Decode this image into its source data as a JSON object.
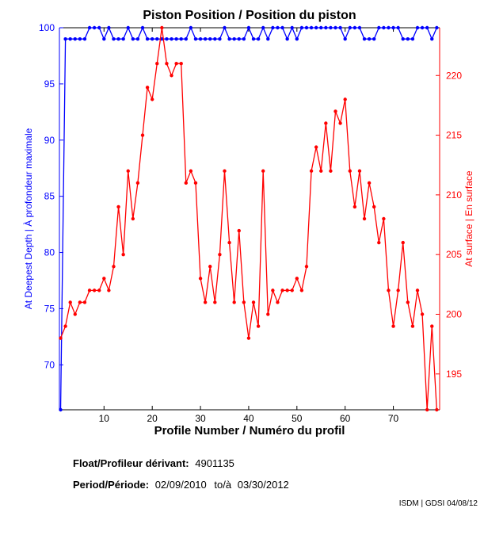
{
  "chart_data": {
    "type": "line",
    "title": "Piston Position / Position du piston",
    "xlabel": "Profile Number / Numéro du profil",
    "ylabel_left": "At Deepest Depth | À profondeur maximale",
    "ylabel_right": "At surface | En surface",
    "xlim": [
      0.75,
      79.6
    ],
    "ylim_left": [
      66,
      100
    ],
    "ylim_right": [
      192,
      224
    ],
    "x_ticks": [
      10,
      20,
      30,
      40,
      50,
      60,
      70
    ],
    "y_ticks_left": [
      70,
      75,
      80,
      85,
      90,
      95,
      100
    ],
    "y_ticks_right": [
      195,
      200,
      205,
      210,
      215,
      220
    ],
    "grid": false,
    "series": [
      {
        "name": "At Deepest Depth",
        "axis": "left",
        "color": "#0000ff",
        "values": [
          66,
          99,
          99,
          99,
          99,
          99,
          100,
          100,
          100,
          99,
          100,
          99,
          99,
          99,
          100,
          99,
          99,
          100,
          99,
          99,
          99,
          99,
          99,
          99,
          99,
          99,
          99,
          100,
          99,
          99,
          99,
          99,
          99,
          99,
          100,
          99,
          99,
          99,
          99,
          100,
          99,
          99,
          100,
          99,
          100,
          100,
          100,
          99,
          100,
          99,
          100,
          100,
          100,
          100,
          100,
          100,
          100,
          100,
          100,
          99,
          100,
          100,
          100,
          99,
          99,
          99,
          100,
          100,
          100,
          100,
          100,
          99,
          99,
          99,
          100,
          100,
          100,
          99,
          100
        ]
      },
      {
        "name": "At surface",
        "axis": "right",
        "color": "#ff0000",
        "values": [
          198,
          199,
          201,
          200,
          201,
          201,
          202,
          202,
          202,
          203,
          202,
          204,
          209,
          205,
          212,
          208,
          211,
          215,
          219,
          218,
          221,
          224,
          221,
          220,
          221,
          221,
          211,
          212,
          211,
          203,
          201,
          204,
          201,
          205,
          212,
          206,
          201,
          207,
          201,
          198,
          201,
          199,
          212,
          200,
          202,
          201,
          202,
          202,
          202,
          203,
          202,
          204,
          212,
          214,
          212,
          216,
          212,
          217,
          216,
          218,
          212,
          209,
          212,
          208,
          211,
          209,
          206,
          208,
          202,
          199,
          202,
          206,
          201,
          199,
          202,
          200,
          192,
          199,
          192
        ]
      }
    ]
  },
  "footer": {
    "float_label": "Float/Profileur dérivant:",
    "float_value": "4901135",
    "period_label": "Period/Période:",
    "period_start": "02/09/2010",
    "period_sep": "to/à",
    "period_end": "03/30/2012",
    "credit": "ISDM | GDSI 04/08/12"
  }
}
